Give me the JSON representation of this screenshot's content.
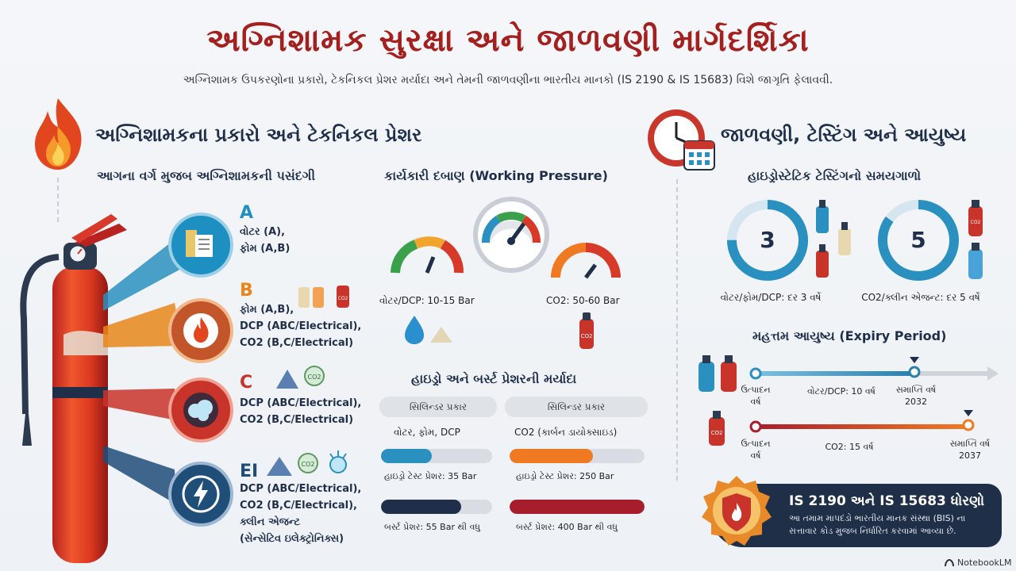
{
  "header": {
    "title": "અગ્નિશામક સુરક્ષા અને જાળવણી માર્ગદર્શિકા",
    "subtitle": "અગ્નિશામક ઉપકરણોના પ્રકારો, ટેકનિકલ પ્રેશર મર્યાદા અને તેમની જાળવણીના ભારતીય માનકો (IS 2190 & IS 15683) વિશે જાગૃતિ ફેલાવવી."
  },
  "left_section": {
    "heading": "અગ્નિશામકના પ્રકારો અને ટેકનિકલ પ્રેશર",
    "class_heading": "આગના વર્ગ મુજબ અગ્નિશામકની પસંદગી",
    "classes": [
      {
        "letter": "A",
        "lines": [
          "વોટર (A),",
          "ફોમ (A,B)"
        ],
        "color": "#1d8fc1"
      },
      {
        "letter": "B",
        "lines": [
          "ફોમ (A,B),",
          "DCP (ABC/Electrical),",
          "CO2 (B,C/Electrical)"
        ],
        "color": "#e8861a"
      },
      {
        "letter": "C",
        "lines": [
          "DCP (ABC/Electrical),",
          "CO2 (B,C/Electrical)"
        ],
        "color": "#c9342a"
      },
      {
        "letter": "EI",
        "lines": [
          "DCP (ABC/Electrical),",
          "CO2 (B,C/Electrical),",
          "ક્લીન એજન્ટ",
          "(સેન્સેટિવ ઇલેક્ટ્રોનિક્સ)"
        ],
        "color": "#1f4e79"
      }
    ],
    "icon_labels": {
      "co2": "CO2"
    }
  },
  "pressure": {
    "heading": "કાર્યકારી દબાણ (Working Pressure)",
    "gauge_water": "વોટર/DCP: 10-15 Bar",
    "gauge_co2": "CO2: 50-60 Bar"
  },
  "limits": {
    "heading": "હાઇડ્રો અને બર્સ્ટ પ્રેશરની મર્યાદા",
    "col_head_1": "સિલિન્ડર પ્રકાર",
    "col_head_2": "સિલિન્ડર પ્રકાર",
    "col_type_1": "વોટર, ફોમ, DCP",
    "col_type_2": "CO2 (કાર્બન ડાયોક્સાઇડ)",
    "hydro_1": "હાઇડ્રો ટેસ્ટ પ્રેશર: 35 Bar",
    "hydro_2": "હાઇડ્રો ટેસ્ટ પ્રેશર: 250 Bar",
    "burst_1": "બર્સ્ટ પ્રેશર: 55 Bar થી વધુ",
    "burst_2": "બર્સ્ટ પ્રેશર: 400 Bar થી વધુ"
  },
  "right_section": {
    "heading": "જાળવણી, ટેસ્ટિંગ અને આયુષ્ય",
    "hydro_heading": "હાઇડ્રોસ્ટેટિક ટેસ્ટિંગનો સમયગાળો",
    "ring_1_value": "3",
    "ring_1_label": "વોટર/ફોમ/DCP: દર 3 વર્ષે",
    "ring_2_value": "5",
    "ring_2_label": "CO2/ક્લીન એજન્ટ: દર 5 વર્ષે",
    "expiry_heading": "મહત્તમ આયુષ્ય (Expiry Period)",
    "tl1_start": "ઉત્પાદન વર્ષ",
    "tl1_mid": "વોટર/DCP: 10 વર્ષ",
    "tl1_end": "સમાપ્તિ વર્ષ 2032",
    "tl2_start": "ઉત્પાદન વર્ષ",
    "tl2_mid": "CO2: 15 વર્ષ",
    "tl2_end": "સમાપ્તિ વર્ષ 2037"
  },
  "standards": {
    "title": "IS 2190 અને IS 15683 ધોરણો",
    "desc": "આ તમામ માપદંડો ભારતીય માનક સંસ્થા (BIS) ના સત્તાવાર કોડ મુજબ નિર્ધારિત કરવામાં આવ્યા છે."
  },
  "brand": "NotebookLM",
  "colors": {
    "title_red": "#a3201e",
    "navy": "#1f2f4a",
    "teal": "#2a90c0",
    "orange": "#ef7a22",
    "dark_red": "#a61e2b"
  }
}
